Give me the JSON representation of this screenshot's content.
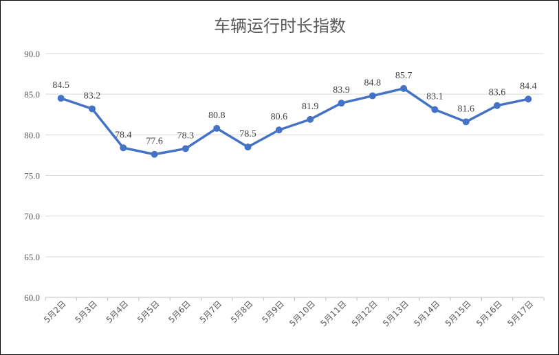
{
  "chart_data": {
    "type": "line",
    "title": "车辆运行时长指数",
    "xlabel": "",
    "ylabel": "",
    "categories": [
      "5月2日",
      "5月3日",
      "5月4日",
      "5月5日",
      "5月6日",
      "5月7日",
      "5月8日",
      "5月9日",
      "5月10日",
      "5月11日",
      "5月12日",
      "5月13日",
      "5月14日",
      "5月15日",
      "5月16日",
      "5月17日"
    ],
    "series": [
      {
        "values": [
          84.5,
          83.2,
          78.4,
          77.6,
          78.3,
          80.8,
          78.5,
          80.6,
          81.9,
          83.9,
          84.8,
          85.7,
          83.1,
          81.6,
          83.6,
          84.4
        ],
        "labels": [
          "84.5",
          "83.2",
          "78.4",
          "77.6",
          "78.3",
          "80.8",
          "78.5",
          "80.6",
          "81.9",
          "83.9",
          "84.8",
          "85.7",
          "83.1",
          "81.6",
          "83.6",
          "84.4"
        ]
      }
    ],
    "ylim": [
      60,
      90
    ],
    "yticks": [
      "60.0",
      "65.0",
      "70.0",
      "75.0",
      "80.0",
      "85.0",
      "90.0"
    ],
    "grid": true,
    "legend": "none",
    "line_color": "#4472C4",
    "grid_color": "#D9D9D9"
  }
}
